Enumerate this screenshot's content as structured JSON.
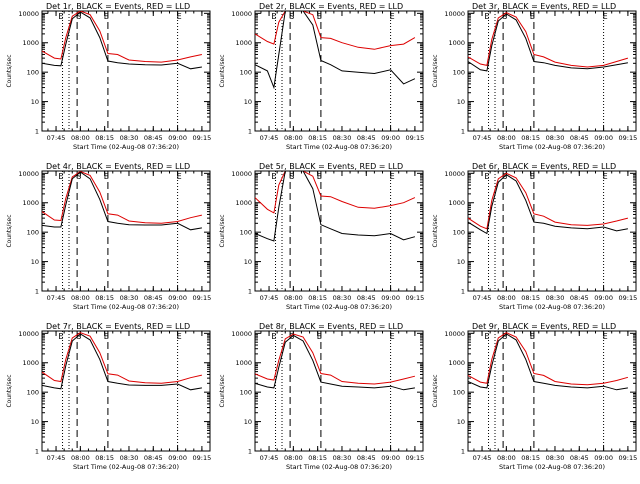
{
  "chart_data": {
    "type": "line",
    "layout": "3x3 grid",
    "x_axis": {
      "label": "Start Time (02-Aug-08 07:36:20)",
      "ticks": [
        "07:45",
        "08:00",
        "08:15",
        "08:30",
        "08:45",
        "09:00",
        "09:15"
      ],
      "range": [
        "07:36:20",
        "09:20"
      ]
    },
    "y_axis": {
      "label": "Counts/sec",
      "scale": "log",
      "ticks": [
        "1",
        "10",
        "100",
        "1000",
        "10000"
      ],
      "range": [
        1,
        12000
      ]
    },
    "markers": {
      "vertical_dotted_times": [
        "07:49",
        "07:53",
        "09:00"
      ],
      "vertical_dashed_times": [
        "07:58",
        "08:17"
      ],
      "letters": [
        {
          "text": "E",
          "time": "07:48"
        },
        {
          "text": "S",
          "time": "07:59"
        },
        {
          "text": "E",
          "time": "08:16"
        },
        {
          "text": "E",
          "time": "09:01"
        }
      ]
    },
    "series_colors": {
      "events": "#000000",
      "lld": "#dd0000"
    },
    "panels": [
      {
        "title": "Det 1r, BLACK = Events, RED = LLD",
        "events": {
          "x": [
            "07:36",
            "07:44",
            "07:48",
            "07:51",
            "07:55",
            "08:00",
            "08:06",
            "08:12",
            "08:17",
            "08:23",
            "08:30",
            "08:40",
            "08:50",
            "09:00",
            "09:08",
            "09:15"
          ],
          "y": [
            200,
            170,
            165,
            900,
            6500,
            11000,
            7000,
            1500,
            240,
            210,
            190,
            180,
            175,
            200,
            130,
            150
          ]
        },
        "lld": {
          "x": [
            "07:36",
            "07:44",
            "07:48",
            "07:51",
            "07:55",
            "08:00",
            "08:06",
            "08:12",
            "08:17",
            "08:23",
            "08:30",
            "08:40",
            "08:50",
            "09:00",
            "09:08",
            "09:15"
          ],
          "y": [
            520,
            300,
            280,
            1500,
            8000,
            12000,
            9000,
            2500,
            430,
            400,
            260,
            230,
            220,
            260,
            330,
            400
          ]
        }
      },
      {
        "title": "Det 2r, BLACK = Events, RED = LLD",
        "events": {
          "x": [
            "07:36",
            "07:44",
            "07:48",
            "07:51",
            "07:55",
            "08:00",
            "08:06",
            "08:12",
            "08:17",
            "08:23",
            "08:30",
            "08:40",
            "08:50",
            "09:00",
            "09:08",
            "09:15"
          ],
          "y": [
            180,
            110,
            30,
            400,
            15000,
            15000,
            15000,
            4000,
            250,
            180,
            110,
            100,
            90,
            120,
            40,
            60
          ]
        },
        "lld": {
          "x": [
            "07:36",
            "07:44",
            "07:48",
            "07:51",
            "07:55",
            "08:00",
            "08:06",
            "08:12",
            "08:17",
            "08:23",
            "08:30",
            "08:40",
            "08:50",
            "09:00",
            "09:08",
            "09:15"
          ],
          "y": [
            2000,
            1100,
            900,
            5000,
            15000,
            15000,
            15000,
            9000,
            1500,
            1400,
            1000,
            700,
            600,
            800,
            900,
            1500
          ]
        }
      },
      {
        "title": "Det 3r, BLACK = Events, RED = LLD",
        "events": {
          "x": [
            "07:36",
            "07:44",
            "07:48",
            "07:51",
            "07:55",
            "08:00",
            "08:06",
            "08:12",
            "08:17",
            "08:23",
            "08:30",
            "08:40",
            "08:50",
            "09:00",
            "09:08",
            "09:15"
          ],
          "y": [
            230,
            120,
            110,
            800,
            5500,
            9500,
            6000,
            1400,
            230,
            210,
            170,
            140,
            130,
            150,
            180,
            210
          ]
        },
        "lld": {
          "x": [
            "07:36",
            "07:44",
            "07:48",
            "07:51",
            "07:55",
            "08:00",
            "08:06",
            "08:12",
            "08:17",
            "08:23",
            "08:30",
            "08:40",
            "08:50",
            "09:00",
            "09:08",
            "09:15"
          ],
          "y": [
            330,
            190,
            170,
            1300,
            7000,
            10500,
            7500,
            2400,
            400,
            330,
            220,
            170,
            150,
            170,
            230,
            300
          ]
        }
      },
      {
        "title": "Det 4r, BLACK = Events, RED = LLD",
        "events": {
          "x": [
            "07:36",
            "07:44",
            "07:48",
            "07:51",
            "07:55",
            "08:00",
            "08:06",
            "08:12",
            "08:17",
            "08:23",
            "08:30",
            "08:40",
            "08:50",
            "09:00",
            "09:08",
            "09:15"
          ],
          "y": [
            170,
            150,
            150,
            850,
            6500,
            11000,
            6500,
            1300,
            230,
            200,
            180,
            175,
            175,
            200,
            120,
            140
          ]
        },
        "lld": {
          "x": [
            "07:36",
            "07:44",
            "07:48",
            "07:51",
            "07:55",
            "08:00",
            "08:06",
            "08:12",
            "08:17",
            "08:23",
            "08:30",
            "08:40",
            "08:50",
            "09:00",
            "09:08",
            "09:15"
          ],
          "y": [
            500,
            260,
            250,
            1400,
            7500,
            11500,
            8500,
            2300,
            420,
            380,
            240,
            210,
            200,
            230,
            310,
            380
          ]
        }
      },
      {
        "title": "Det 5r, BLACK = Events, RED = LLD",
        "events": {
          "x": [
            "07:36",
            "07:44",
            "07:48",
            "07:51",
            "07:55",
            "08:00",
            "08:06",
            "08:12",
            "08:17",
            "08:23",
            "08:30",
            "08:40",
            "08:50",
            "09:00",
            "09:08",
            "09:15"
          ],
          "y": [
            90,
            60,
            50,
            700,
            15000,
            15000,
            12000,
            3000,
            180,
            130,
            90,
            80,
            75,
            90,
            55,
            70
          ]
        },
        "lld": {
          "x": [
            "07:36",
            "07:44",
            "07:48",
            "07:51",
            "07:55",
            "08:00",
            "08:06",
            "08:12",
            "08:17",
            "08:23",
            "08:30",
            "08:40",
            "08:50",
            "09:00",
            "09:08",
            "09:15"
          ],
          "y": [
            1500,
            600,
            450,
            4000,
            15000,
            15000,
            15000,
            8000,
            1700,
            1600,
            1100,
            700,
            650,
            800,
            1000,
            1500
          ]
        }
      },
      {
        "title": "Det 6r, BLACK = Events, RED = LLD",
        "events": {
          "x": [
            "07:36",
            "07:44",
            "07:48",
            "07:51",
            "07:55",
            "08:00",
            "08:06",
            "08:12",
            "08:17",
            "08:23",
            "08:30",
            "08:40",
            "08:50",
            "09:00",
            "09:08",
            "09:15"
          ],
          "y": [
            220,
            120,
            90,
            750,
            5000,
            9000,
            5500,
            1200,
            220,
            200,
            160,
            140,
            130,
            150,
            110,
            130
          ]
        },
        "lld": {
          "x": [
            "07:36",
            "07:44",
            "07:48",
            "07:51",
            "07:55",
            "08:00",
            "08:06",
            "08:12",
            "08:17",
            "08:23",
            "08:30",
            "08:40",
            "08:50",
            "09:00",
            "09:08",
            "09:15"
          ],
          "y": [
            300,
            160,
            130,
            1200,
            6500,
            10000,
            7000,
            2200,
            420,
            350,
            220,
            180,
            170,
            190,
            240,
            300
          ]
        }
      },
      {
        "title": "Det 7r, BLACK = Events, RED = LLD",
        "events": {
          "x": [
            "07:36",
            "07:44",
            "07:48",
            "07:51",
            "07:55",
            "08:00",
            "08:06",
            "08:12",
            "08:17",
            "08:23",
            "08:30",
            "08:40",
            "08:50",
            "09:00",
            "09:08",
            "09:15"
          ],
          "y": [
            170,
            140,
            130,
            800,
            5500,
            9500,
            6000,
            1300,
            230,
            200,
            175,
            170,
            170,
            190,
            120,
            140
          ]
        },
        "lld": {
          "x": [
            "07:36",
            "07:44",
            "07:48",
            "07:51",
            "07:55",
            "08:00",
            "08:06",
            "08:12",
            "08:17",
            "08:23",
            "08:30",
            "08:40",
            "08:50",
            "09:00",
            "09:08",
            "09:15"
          ],
          "y": [
            480,
            250,
            230,
            1300,
            7000,
            10500,
            8000,
            2200,
            420,
            380,
            240,
            210,
            200,
            230,
            310,
            380
          ]
        }
      },
      {
        "title": "Det 8r, BLACK = Events, RED = LLD",
        "events": {
          "x": [
            "07:36",
            "07:44",
            "07:48",
            "07:51",
            "07:55",
            "08:00",
            "08:06",
            "08:12",
            "08:17",
            "08:23",
            "08:30",
            "08:40",
            "08:50",
            "09:00",
            "09:08",
            "09:15"
          ],
          "y": [
            200,
            150,
            140,
            700,
            5000,
            8500,
            5500,
            1200,
            220,
            190,
            160,
            150,
            140,
            160,
            120,
            140
          ]
        },
        "lld": {
          "x": [
            "07:36",
            "07:44",
            "07:48",
            "07:51",
            "07:55",
            "08:00",
            "08:06",
            "08:12",
            "08:17",
            "08:23",
            "08:30",
            "08:40",
            "08:50",
            "09:00",
            "09:08",
            "09:15"
          ],
          "y": [
            420,
            280,
            260,
            1200,
            6500,
            9500,
            7500,
            2200,
            430,
            380,
            230,
            200,
            190,
            220,
            280,
            350
          ]
        }
      },
      {
        "title": "Det 9r, BLACK = Events, RED = LLD",
        "events": {
          "x": [
            "07:36",
            "07:44",
            "07:48",
            "07:51",
            "07:55",
            "08:00",
            "08:06",
            "08:12",
            "08:17",
            "08:23",
            "08:30",
            "08:40",
            "08:50",
            "09:00",
            "09:08",
            "09:15"
          ],
          "y": [
            230,
            150,
            140,
            800,
            5500,
            9500,
            6000,
            1300,
            230,
            200,
            170,
            150,
            140,
            160,
            120,
            140
          ]
        },
        "lld": {
          "x": [
            "07:36",
            "07:44",
            "07:48",
            "07:51",
            "07:55",
            "08:00",
            "08:06",
            "08:12",
            "08:17",
            "08:23",
            "08:30",
            "08:40",
            "08:50",
            "09:00",
            "09:08",
            "09:15"
          ],
          "y": [
            370,
            220,
            200,
            1300,
            7000,
            10500,
            7500,
            2400,
            430,
            370,
            230,
            190,
            180,
            200,
            250,
            320
          ]
        }
      }
    ]
  }
}
